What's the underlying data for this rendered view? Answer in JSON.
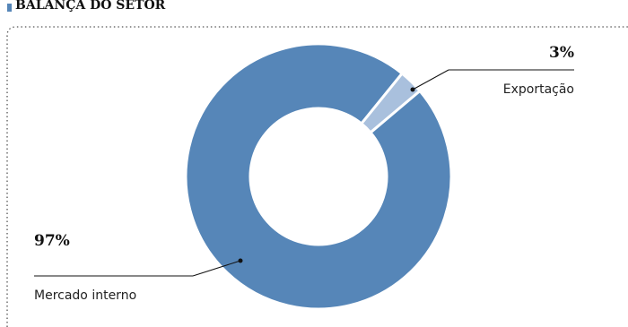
{
  "chart_data": {
    "type": "pie",
    "title": "BALANÇA DO SETOR",
    "categories": [
      "Exportação",
      "Mercado interno"
    ],
    "values": [
      3,
      97
    ],
    "value_labels": [
      "3%",
      "97%"
    ],
    "colors": [
      "#a9c0dd",
      "#5686b8"
    ]
  }
}
